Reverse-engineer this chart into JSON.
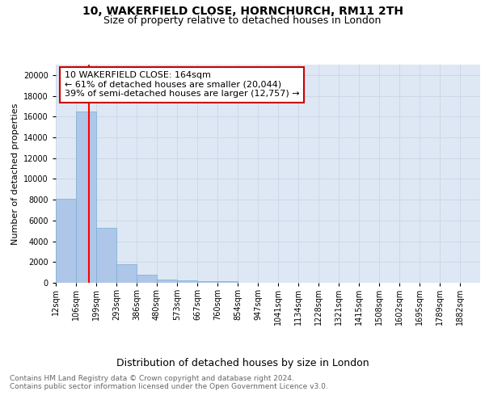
{
  "title": "10, WAKERFIELD CLOSE, HORNCHURCH, RM11 2TH",
  "subtitle": "Size of property relative to detached houses in London",
  "xlabel": "Distribution of detached houses by size in London",
  "ylabel": "Number of detached properties",
  "categories": [
    "12sqm",
    "106sqm",
    "199sqm",
    "293sqm",
    "386sqm",
    "480sqm",
    "573sqm",
    "667sqm",
    "760sqm",
    "854sqm",
    "947sqm",
    "1041sqm",
    "1134sqm",
    "1228sqm",
    "1321sqm",
    "1415sqm",
    "1508sqm",
    "1602sqm",
    "1695sqm",
    "1789sqm",
    "1882sqm"
  ],
  "values": [
    8100,
    16500,
    5300,
    1800,
    750,
    350,
    220,
    160,
    150,
    0,
    0,
    0,
    0,
    0,
    0,
    0,
    0,
    0,
    0,
    0,
    0
  ],
  "bar_color": "#aec6e8",
  "bar_edge_color": "#7aadd4",
  "annotation_box_text": "10 WAKERFIELD CLOSE: 164sqm\n← 61% of detached houses are smaller (20,044)\n39% of semi-detached houses are larger (12,757) →",
  "annotation_box_color": "#ffffff",
  "annotation_box_edge_color": "#cc0000",
  "ylim": [
    0,
    21000
  ],
  "yticks": [
    0,
    2000,
    4000,
    6000,
    8000,
    10000,
    12000,
    14000,
    16000,
    18000,
    20000
  ],
  "grid_color": "#ccd8e8",
  "background_color": "#dde8f4",
  "footer_line1": "Contains HM Land Registry data © Crown copyright and database right 2024.",
  "footer_line2": "Contains public sector information licensed under the Open Government Licence v3.0.",
  "title_fontsize": 10,
  "subtitle_fontsize": 9,
  "xlabel_fontsize": 9,
  "ylabel_fontsize": 8,
  "tick_fontsize": 7,
  "annotation_fontsize": 8,
  "footer_fontsize": 6.5
}
